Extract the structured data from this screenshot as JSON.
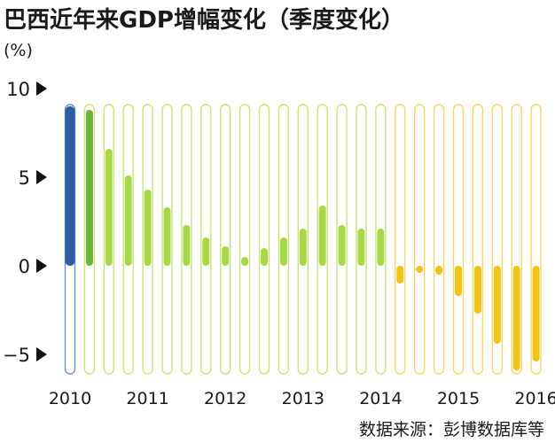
{
  "title": "巴西近年来GDP增幅变化（季度变化）",
  "unit": "(%)",
  "source": "数据来源：彭博数据库等",
  "colors": {
    "blue": "#2f5ca3",
    "dark_green": "#6fb43a",
    "light_green": "#a8d84a",
    "yellow": "#f2c318",
    "blue_outline": "#6f90c8",
    "green_outline": "#c9e57a",
    "yellow_outline": "#f5d86a"
  },
  "chart_data": {
    "type": "bar",
    "y_ticks": [
      10,
      5,
      0,
      -5
    ],
    "y_tick_labels": [
      "10",
      "5",
      "0",
      "−5"
    ],
    "ylim": [
      -6,
      9
    ],
    "x_labels": [
      "2010",
      "2011",
      "2012",
      "2013",
      "2014",
      "2015",
      "2016"
    ],
    "x_label_bar_index": [
      0,
      4,
      8,
      12,
      16,
      20,
      24
    ],
    "series": [
      {
        "values": [
          9.0,
          8.8,
          6.6,
          5.1,
          4.3,
          3.3,
          2.3,
          1.6,
          1.1,
          0.5,
          1.0,
          1.6,
          2.1,
          3.4,
          2.3,
          2.1,
          2.1,
          -1.0,
          -0.4,
          -0.5,
          -1.7,
          -2.7,
          -4.4,
          -5.9,
          -5.4
        ],
        "colors": [
          "blue",
          "dark_green",
          "light_green",
          "light_green",
          "light_green",
          "light_green",
          "light_green",
          "light_green",
          "light_green",
          "light_green",
          "light_green",
          "light_green",
          "light_green",
          "light_green",
          "light_green",
          "light_green",
          "light_green",
          "yellow",
          "yellow",
          "yellow",
          "yellow",
          "yellow",
          "yellow",
          "yellow",
          "yellow"
        ]
      }
    ]
  }
}
